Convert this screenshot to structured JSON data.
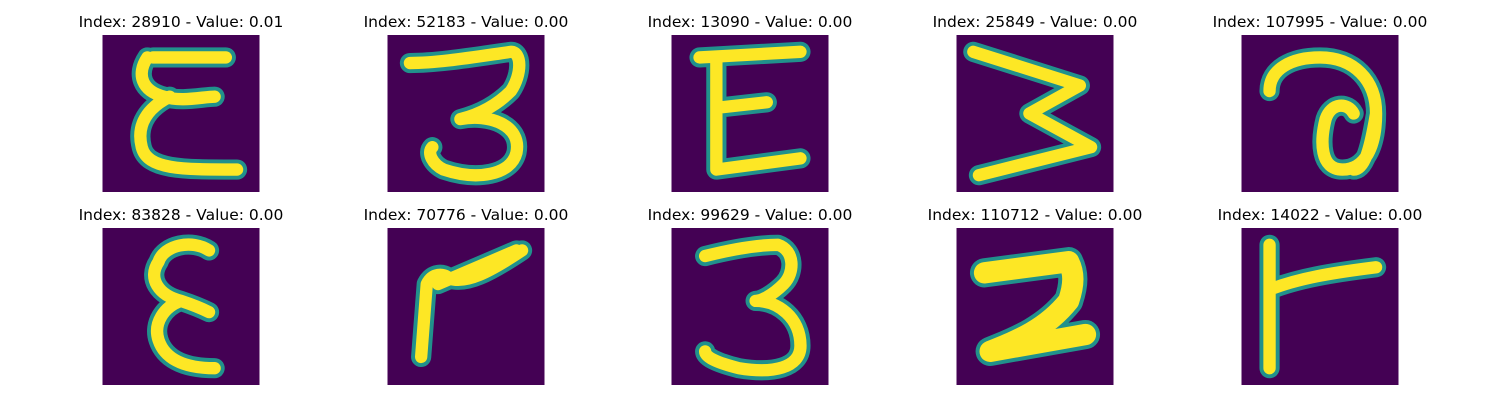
{
  "colors": {
    "background": "#440154",
    "stroke": "#FDE725",
    "edge": "#21918C"
  },
  "panels": [
    {
      "title": "Index: 28910 - Value: 0.01",
      "glyph": "sigma-glyph"
    },
    {
      "title": "Index: 52183 - Value: 0.00",
      "glyph": "three-glyph"
    },
    {
      "title": "Index: 13090 - Value: 0.00",
      "glyph": "e-glyph"
    },
    {
      "title": "Index: 25849 - Value: 0.00",
      "glyph": "zigzag-glyph"
    },
    {
      "title": "Index: 107995 - Value: 0.00",
      "glyph": "a-glyph"
    },
    {
      "title": "Index: 83828 - Value: 0.00",
      "glyph": "e-glyph"
    },
    {
      "title": "Index: 70776 - Value: 0.00",
      "glyph": "r-glyph"
    },
    {
      "title": "Index: 99629 - Value: 0.00",
      "glyph": "three-glyph"
    },
    {
      "title": "Index: 110712 - Value: 0.00",
      "glyph": "z-glyph"
    },
    {
      "title": "Index: 14022 - Value: 0.00",
      "glyph": "t-glyph"
    }
  ]
}
